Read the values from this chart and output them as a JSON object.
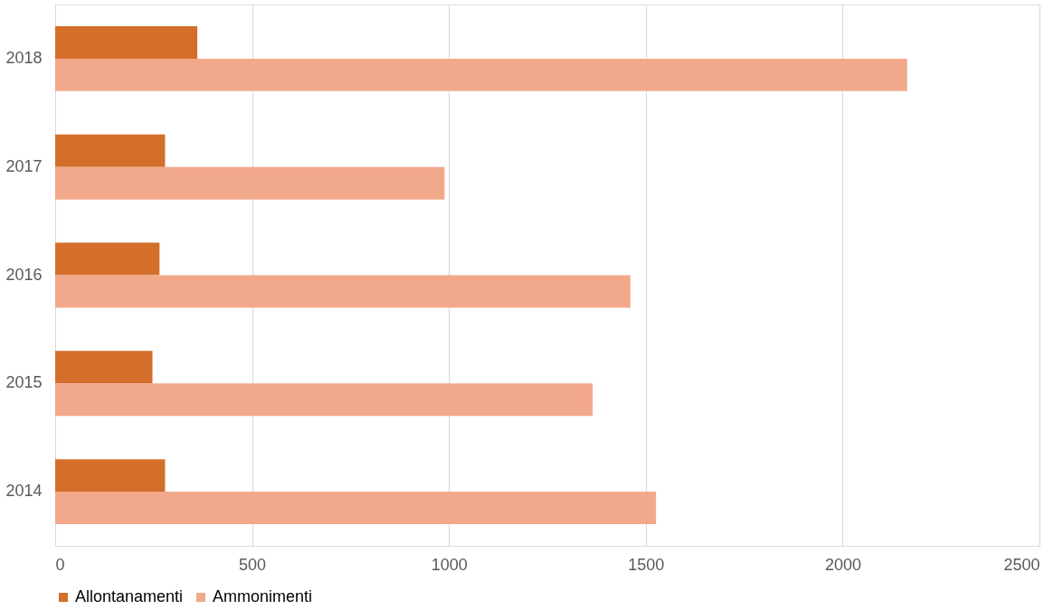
{
  "chart_data": {
    "type": "bar",
    "orientation": "horizontal",
    "categories": [
      "2018",
      "2017",
      "2016",
      "2015",
      "2014"
    ],
    "series": [
      {
        "name": "Allontanamenti",
        "color": "#d46e2b",
        "values": [
          361,
          279,
          265,
          247,
          279
        ]
      },
      {
        "name": "Ammonimenti",
        "color": "#f2a98b",
        "values": [
          2164,
          989,
          1461,
          1365,
          1526
        ]
      }
    ],
    "xlim": [
      0,
      2500
    ],
    "xticks": [
      0,
      500,
      1000,
      1500,
      2000,
      2500
    ],
    "grid": "x",
    "legend": "bottom"
  }
}
